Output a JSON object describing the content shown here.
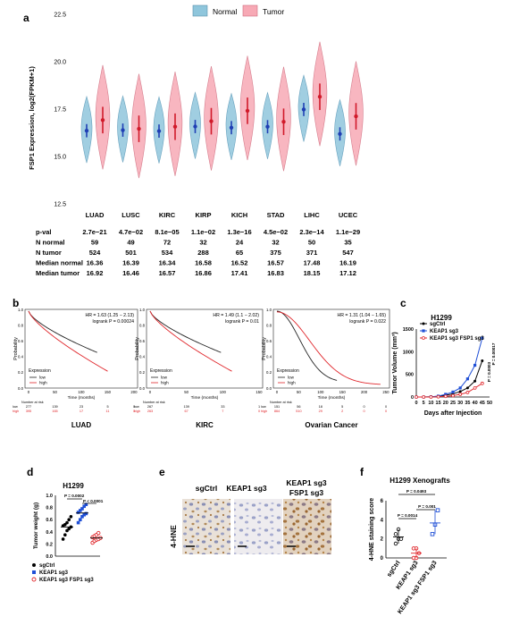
{
  "panel_labels": {
    "a": "a",
    "b": "b",
    "c": "c",
    "d": "d",
    "e": "e",
    "f": "f"
  },
  "panel_a": {
    "legend": {
      "normal": "Normal",
      "tumor": "Tumor",
      "normal_color": "#8fc6dc",
      "tumor_color": "#f7a9b5"
    },
    "ylabel": "FSP1 Expression, log2(FPKM+1)",
    "yticks": [
      "22.5",
      "20.0",
      "17.5",
      "15.0",
      "12.5"
    ],
    "groups": [
      "LUAD",
      "LUSC",
      "KIRC",
      "KIRP",
      "KICH",
      "STAD",
      "LIHC",
      "UCEC"
    ],
    "table": {
      "row_labels": [
        "p-val",
        "N normal",
        "N tumor",
        "Median normal",
        "Median tumor"
      ],
      "pval": [
        "2.7e−21",
        "4.7e−02",
        "8.1e−05",
        "1.1e−02",
        "1.3e−16",
        "4.5e−02",
        "2.3e−14",
        "1.1e−29"
      ],
      "n_normal": [
        "59",
        "49",
        "72",
        "32",
        "24",
        "32",
        "50",
        "35"
      ],
      "n_tumor": [
        "524",
        "501",
        "534",
        "288",
        "65",
        "375",
        "371",
        "547"
      ],
      "median_normal": [
        "16.36",
        "16.39",
        "16.34",
        "16.58",
        "16.52",
        "16.57",
        "17.48",
        "16.19"
      ],
      "median_tumor": [
        "16.92",
        "16.46",
        "16.57",
        "16.86",
        "17.41",
        "16.83",
        "18.15",
        "17.12"
      ]
    },
    "chart_data": {
      "type": "violin",
      "ylabel": "FSP1 Expression, log2(FPKM+1)",
      "ylim": [
        12.5,
        22.5
      ],
      "categories": [
        "LUAD",
        "LUSC",
        "KIRC",
        "KIRP",
        "KICH",
        "STAD",
        "LIHC",
        "UCEC"
      ],
      "series": [
        {
          "name": "Normal",
          "values": [
            16.36,
            16.39,
            16.34,
            16.58,
            16.52,
            16.57,
            17.48,
            16.19
          ]
        },
        {
          "name": "Tumor",
          "values": [
            16.92,
            16.46,
            16.57,
            16.86,
            17.41,
            16.83,
            18.15,
            17.12
          ]
        }
      ]
    }
  },
  "panel_b": {
    "ylabel": "Probability",
    "xlabel": "Time (months)",
    "legend_title": "Expression",
    "legend_low": "low",
    "legend_high": "high",
    "number_at_risk": "Number at risk",
    "plots": [
      {
        "title": "LUAD",
        "hr": "HR = 1.63 (1.25 − 2.13)",
        "logrank": "logrank P = 0.00024",
        "xticks": [
          "0",
          "50",
          "100",
          "150",
          "200"
        ],
        "yticks": [
          "0.0",
          "0.2",
          "0.4",
          "0.6",
          "0.8",
          "1.0"
        ],
        "risk_low": [
          "277",
          "139",
          "23",
          "5",
          "0"
        ],
        "risk_high": [
          "395",
          "165",
          "17",
          "11",
          "0"
        ]
      },
      {
        "title": "KIRC",
        "hr": "HR = 1.49 (1.1 − 2.02)",
        "logrank": "logrank P = 0.01",
        "xticks": [
          "0",
          "50",
          "100",
          "150"
        ],
        "yticks": [
          "0.0",
          "0.2",
          "0.4",
          "0.6",
          "0.8",
          "1.0"
        ],
        "risk_low": [
          "267",
          "139",
          "33",
          "1"
        ],
        "risk_high": [
          "263",
          "67",
          "7",
          "0"
        ]
      },
      {
        "title": "Ovarian Cancer",
        "hr": "HR = 1.31 (1.04 − 1.65)",
        "logrank": "logrank P = 0.022",
        "xticks": [
          "0",
          "50",
          "100",
          "150",
          "200",
          "250"
        ],
        "yticks": [
          "0.0",
          "0.2",
          "0.4",
          "0.6",
          "0.8",
          "1.0"
        ],
        "risk_low": [
          "151",
          "56",
          "18",
          "5",
          "0",
          "0"
        ],
        "risk_high": [
          "864",
          "510",
          "29",
          "2",
          "0",
          "0"
        ]
      }
    ]
  },
  "panel_c": {
    "title": "H1299",
    "ylabel": "Tumor Volume (mm³)",
    "xlabel": "Days after Injection",
    "legend": [
      "sgCtrl",
      "KEAP1 sg3",
      "KEAP1 sg3 FSP1 sg3"
    ],
    "pvals": [
      "P = 0.00017",
      "P = 0.0003"
    ],
    "chart_data": {
      "type": "line",
      "x": [
        0,
        5,
        10,
        15,
        20,
        25,
        30,
        35,
        40,
        45,
        50
      ],
      "xticks": [
        "0",
        "5",
        "10",
        "15",
        "20",
        "25",
        "30",
        "35",
        "40",
        "45",
        "50"
      ],
      "yticks": [
        "0",
        "500",
        "1000",
        "1500"
      ],
      "ylim": [
        0,
        1500
      ],
      "series": [
        {
          "name": "sgCtrl",
          "x": [
            0,
            5,
            10,
            15,
            20,
            25,
            30,
            35,
            40,
            45
          ],
          "values": [
            0,
            0,
            5,
            15,
            40,
            70,
            120,
            200,
            350,
            800
          ]
        },
        {
          "name": "KEAP1 sg3",
          "x": [
            0,
            5,
            10,
            15,
            20,
            25,
            30,
            35,
            40,
            45
          ],
          "values": [
            0,
            0,
            5,
            20,
            60,
            110,
            200,
            400,
            700,
            1300
          ]
        },
        {
          "name": "KEAP1 sg3 FSP1 sg3",
          "x": [
            0,
            5,
            10,
            15,
            20,
            25,
            30,
            35,
            40,
            45
          ],
          "values": [
            0,
            0,
            0,
            5,
            15,
            30,
            60,
            100,
            200,
            300
          ]
        }
      ]
    }
  },
  "panel_d": {
    "title": "H1299",
    "ylabel": "Tumor weight (g)",
    "pvals": [
      "P = 0.0002",
      "P < 0.0001"
    ],
    "legend": [
      "sgCtrl",
      "KEAP1 sg3",
      "KEAP1 sg3 FSP1 sg3"
    ],
    "yticks": [
      "0.0",
      "0.2",
      "0.4",
      "0.6",
      "0.8",
      "1.0"
    ],
    "chart_data": {
      "type": "scatter",
      "ylim": [
        0,
        1.0
      ],
      "series": [
        {
          "name": "sgCtrl",
          "values": [
            0.28,
            0.35,
            0.42,
            0.45,
            0.48,
            0.5,
            0.52,
            0.55,
            0.6,
            0.65
          ]
        },
        {
          "name": "KEAP1 sg3",
          "values": [
            0.55,
            0.6,
            0.65,
            0.68,
            0.7,
            0.72,
            0.75,
            0.78,
            0.82,
            0.85
          ]
        },
        {
          "name": "KEAP1 sg3 FSP1 sg3",
          "values": [
            0.22,
            0.25,
            0.27,
            0.28,
            0.3,
            0.31,
            0.33,
            0.35,
            0.38
          ]
        }
      ]
    }
  },
  "panel_e": {
    "ylabel": "4-HNE",
    "labels": [
      "sgCtrl",
      "KEAP1 sg3",
      "KEAP1 sg3\nFSP1 sg3"
    ],
    "label3_line1": "KEAP1 sg3",
    "label3_line2": "FSP1 sg3"
  },
  "panel_f": {
    "title": "H1299 Xenografts",
    "ylabel": "4-HNE staining score",
    "yticks": [
      "0",
      "2",
      "4",
      "6"
    ],
    "xlabels": [
      "sgCtrl",
      "KEAP1 sg3",
      "KEAP1 sg3 FSP1 sg3"
    ],
    "pvals": [
      "P = 0.0493",
      "P = 0.0014",
      "P = 0.001"
    ],
    "chart_data": {
      "type": "scatter",
      "ylim": [
        0,
        6
      ],
      "series": [
        {
          "name": "sgCtrl",
          "values": [
            1.5,
            2,
            2,
            2.5,
            3
          ]
        },
        {
          "name": "KEAP1 sg3",
          "values": [
            0,
            0,
            0.5,
            1,
            1
          ]
        },
        {
          "name": "KEAP1 sg3 FSP1 sg3",
          "values": [
            2.5,
            3.5,
            5
          ]
        }
      ]
    }
  }
}
